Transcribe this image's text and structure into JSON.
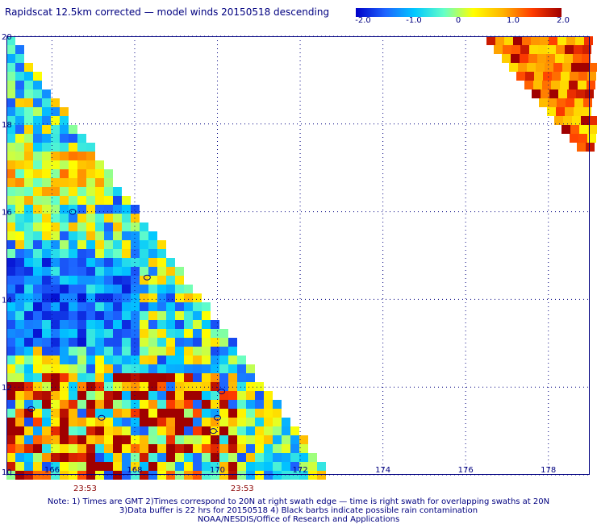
{
  "title": "Rapidscat 12.5km corrected — model winds 20150518 descending",
  "colorbar": {
    "labels": [
      "-2.0",
      "-1.0",
      "0",
      "1.0",
      "2.0"
    ],
    "colors": [
      "#0000c8",
      "#1e64ff",
      "#00c8ff",
      "#64ffc8",
      "#ffff00",
      "#ffb400",
      "#ff3c00",
      "#a00000"
    ],
    "range": [
      -2.0,
      2.0
    ]
  },
  "map": {
    "lon_range": [
      164.9,
      179.0
    ],
    "lat_range": [
      10.0,
      20.0
    ],
    "lon_ticks": [
      "166",
      "168",
      "170",
      "172",
      "174",
      "176",
      "178"
    ],
    "lat_ticks": [
      "20",
      "18",
      "16",
      "14",
      "12",
      "10"
    ],
    "lat_tick_values": [
      20,
      18,
      16,
      14,
      12,
      10
    ],
    "lon_tick_values": [
      166,
      168,
      170,
      172,
      174,
      176,
      178
    ],
    "grid": true,
    "time_labels": [
      {
        "text": "23:53",
        "lon": 166.8
      },
      {
        "text": "23:53",
        "lon": 170.6
      }
    ],
    "time_label_color": "#8b0000"
  },
  "notes": [
    "Note: 1) Times are GMT 2)Times correspond to 20N at right swath edge — time is right swath for overlapping swaths at 20N",
    "3)Data buffer is 22 hrs for 20150518 4) Black barbs indicate possible rain contamination",
    "NOAA/NESDIS/Office of Research and Applications"
  ]
}
